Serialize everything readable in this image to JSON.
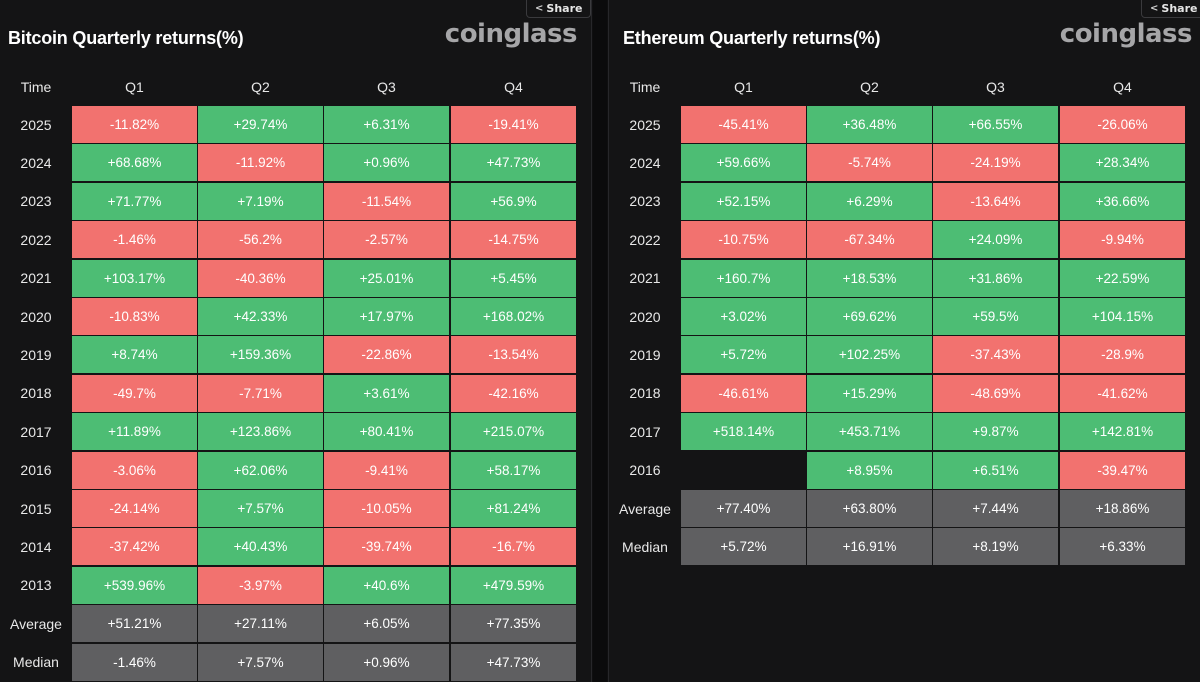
{
  "share_label": "Share",
  "brand": "coinglass",
  "colors": {
    "positive": "#4dbd74",
    "negative": "#f2726f",
    "stat": "#5f5f61"
  },
  "chart_data": [
    {
      "type": "table",
      "title": "Bitcoin Quarterly returns(%)",
      "columns": [
        "Time",
        "Q1",
        "Q2",
        "Q3",
        "Q4"
      ],
      "rows": [
        {
          "label": "2025",
          "values": [
            "-11.82%",
            "+29.74%",
            "+6.31%",
            "-19.41%"
          ]
        },
        {
          "label": "2024",
          "values": [
            "+68.68%",
            "-11.92%",
            "+0.96%",
            "+47.73%"
          ]
        },
        {
          "label": "2023",
          "values": [
            "+71.77%",
            "+7.19%",
            "-11.54%",
            "+56.9%"
          ]
        },
        {
          "label": "2022",
          "values": [
            "-1.46%",
            "-56.2%",
            "-2.57%",
            "-14.75%"
          ]
        },
        {
          "label": "2021",
          "values": [
            "+103.17%",
            "-40.36%",
            "+25.01%",
            "+5.45%"
          ]
        },
        {
          "label": "2020",
          "values": [
            "-10.83%",
            "+42.33%",
            "+17.97%",
            "+168.02%"
          ]
        },
        {
          "label": "2019",
          "values": [
            "+8.74%",
            "+159.36%",
            "-22.86%",
            "-13.54%"
          ]
        },
        {
          "label": "2018",
          "values": [
            "-49.7%",
            "-7.71%",
            "+3.61%",
            "-42.16%"
          ]
        },
        {
          "label": "2017",
          "values": [
            "+11.89%",
            "+123.86%",
            "+80.41%",
            "+215.07%"
          ]
        },
        {
          "label": "2016",
          "values": [
            "-3.06%",
            "+62.06%",
            "-9.41%",
            "+58.17%"
          ]
        },
        {
          "label": "2015",
          "values": [
            "-24.14%",
            "+7.57%",
            "-10.05%",
            "+81.24%"
          ]
        },
        {
          "label": "2014",
          "values": [
            "-37.42%",
            "+40.43%",
            "-39.74%",
            "-16.7%"
          ]
        },
        {
          "label": "2013",
          "values": [
            "+539.96%",
            "-3.97%",
            "+40.6%",
            "+479.59%"
          ]
        }
      ],
      "stats": [
        {
          "label": "Average",
          "values": [
            "+51.21%",
            "+27.11%",
            "+6.05%",
            "+77.35%"
          ]
        },
        {
          "label": "Median",
          "values": [
            "-1.46%",
            "+7.57%",
            "+0.96%",
            "+47.73%"
          ]
        }
      ]
    },
    {
      "type": "table",
      "title": "Ethereum Quarterly returns(%)",
      "columns": [
        "Time",
        "Q1",
        "Q2",
        "Q3",
        "Q4"
      ],
      "rows": [
        {
          "label": "2025",
          "values": [
            "-45.41%",
            "+36.48%",
            "+66.55%",
            "-26.06%"
          ]
        },
        {
          "label": "2024",
          "values": [
            "+59.66%",
            "-5.74%",
            "-24.19%",
            "+28.34%"
          ]
        },
        {
          "label": "2023",
          "values": [
            "+52.15%",
            "+6.29%",
            "-13.64%",
            "+36.66%"
          ]
        },
        {
          "label": "2022",
          "values": [
            "-10.75%",
            "-67.34%",
            "+24.09%",
            "-9.94%"
          ]
        },
        {
          "label": "2021",
          "values": [
            "+160.7%",
            "+18.53%",
            "+31.86%",
            "+22.59%"
          ]
        },
        {
          "label": "2020",
          "values": [
            "+3.02%",
            "+69.62%",
            "+59.5%",
            "+104.15%"
          ]
        },
        {
          "label": "2019",
          "values": [
            "+5.72%",
            "+102.25%",
            "-37.43%",
            "-28.9%"
          ]
        },
        {
          "label": "2018",
          "values": [
            "-46.61%",
            "+15.29%",
            "-48.69%",
            "-41.62%"
          ]
        },
        {
          "label": "2017",
          "values": [
            "+518.14%",
            "+453.71%",
            "+9.87%",
            "+142.81%"
          ]
        },
        {
          "label": "2016",
          "values": [
            "",
            "+8.95%",
            "+6.51%",
            "-39.47%"
          ]
        }
      ],
      "stats": [
        {
          "label": "Average",
          "values": [
            "+77.40%",
            "+63.80%",
            "+7.44%",
            "+18.86%"
          ]
        },
        {
          "label": "Median",
          "values": [
            "+5.72%",
            "+16.91%",
            "+8.19%",
            "+6.33%"
          ]
        }
      ]
    }
  ]
}
